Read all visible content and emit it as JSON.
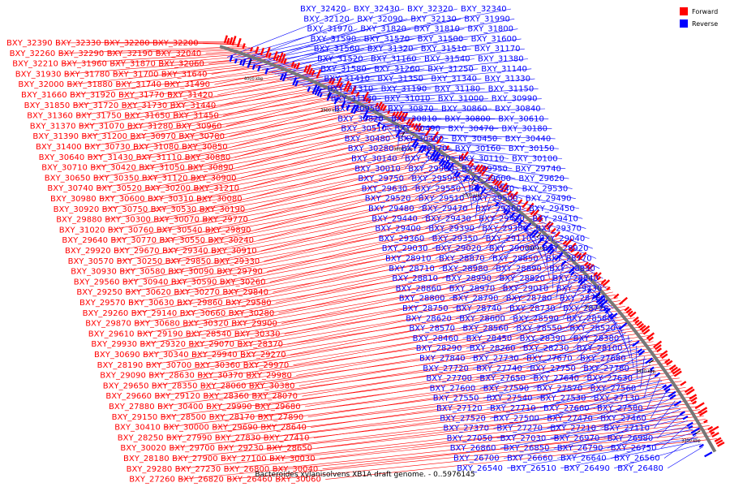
{
  "caption": "Bacteroides xylanisolvens XB1A draft genome. - 0..5976145",
  "legend": [
    {
      "label": "Forward",
      "color": "#ff0000"
    },
    {
      "label": "Reverse",
      "color": "#0000ff"
    }
  ],
  "colors": {
    "forward": "#ff0000",
    "reverse": "#0000ff",
    "backbone": "#777777"
  },
  "ticks": [
    "4000 kbp",
    "3900 kbp",
    "3800 kbp",
    "3700 kbp",
    "3600 kbp",
    "3500 kbp",
    "3400 kbp",
    "3300 kbp"
  ],
  "genes_red": [
    "BXY_32390",
    "BXY_32330",
    "BXY_32280",
    "BXY_32200",
    "BXY_32260",
    "BXY_32290",
    "BXY_32190",
    "BXY_32040",
    "BXY_32210",
    "BXY_31960",
    "BXY_31870",
    "BXY_32060",
    "BXY_31930",
    "BXY_31780",
    "BXY_31700",
    "BXY_31640",
    "BXY_32000",
    "BXY_31880",
    "BXY_31740",
    "BXY_31490",
    "BXY_31660",
    "BXY_31920",
    "BXY_31770",
    "BXY_31420",
    "BXY_31850",
    "BXY_31720",
    "BXY_31730",
    "BXY_31440",
    "BXY_31360",
    "BXY_31750",
    "BXY_31650",
    "BXY_31450",
    "BXY_31370",
    "BXY_31070",
    "BXY_31280",
    "BXY_30960",
    "BXY_31390",
    "BXY_31200",
    "BXY_30970",
    "BXY_30780",
    "BXY_31400",
    "BXY_30730",
    "BXY_31080",
    "BXY_30850",
    "BXY_30640",
    "BXY_31430",
    "BXY_31110",
    "BXY_30880",
    "BXY_30710",
    "BXY_30420",
    "BXY_31050",
    "BXY_30890",
    "BXY_30650",
    "BXY_30350",
    "BXY_31120",
    "BXY_30900",
    "BXY_30740",
    "BXY_30520",
    "BXY_30200",
    "BXY_31210",
    "BXY_30980",
    "BXY_30600",
    "BXY_30310",
    "BXY_30080",
    "BXY_30920",
    "BXY_30750",
    "BXY_30530",
    "BXY_30190",
    "BXY_29880",
    "BXY_30300",
    "BXY_30070",
    "BXY_29770",
    "BXY_31020",
    "BXY_30760",
    "BXY_30540",
    "BXY_29890",
    "BXY_29640",
    "BXY_30770",
    "BXY_30550",
    "BXY_30240",
    "BXY_29920",
    "BXY_29670",
    "BXY_29340",
    "BXY_30910",
    "BXY_30570",
    "BXY_30250",
    "BXY_29850",
    "BXY_29330",
    "BXY_30930",
    "BXY_30580",
    "BXY_30090",
    "BXY_29790",
    "BXY_29560",
    "BXY_30940",
    "BXY_30590",
    "BXY_30260",
    "BXY_29250",
    "BXY_30620",
    "BXY_30270",
    "BXY_29840",
    "BXY_29570",
    "BXY_30630",
    "BXY_29860",
    "BXY_29580",
    "BXY_29260",
    "BXY_29140",
    "BXY_30660",
    "BXY_30280",
    "BXY_29870",
    "BXY_30680",
    "BXY_30320",
    "BXY_29900",
    "BXY_29610",
    "BXY_29190",
    "BXY_28540",
    "BXY_30330",
    "BXY_29930",
    "BXY_29320",
    "BXY_29070",
    "BXY_28370",
    "BXY_30690",
    "BXY_30340",
    "BXY_29940",
    "BXY_29270",
    "BXY_28190",
    "BXY_30700",
    "BXY_30360",
    "BXY_29970",
    "BXY_29090",
    "BXY_28630",
    "BXY_30370",
    "BXY_29980",
    "BXY_29650",
    "BXY_28350",
    "BXY_28060",
    "BXY_30380",
    "BXY_29660",
    "BXY_29120",
    "BXY_28360",
    "BXY_28070",
    "BXY_27880",
    "BXY_30400",
    "BXY_29990",
    "BXY_29680",
    "BXY_29150",
    "BXY_28500",
    "BXY_28170",
    "BXY_27890",
    "BXY_30410",
    "BXY_30000",
    "BXY_29690",
    "BXY_28640",
    "BXY_28250",
    "BXY_27990",
    "BXY_27830",
    "BXY_27410",
    "BXY_30020",
    "BXY_29700",
    "BXY_29230",
    "BXY_28650",
    "BXY_28180",
    "BXY_27900",
    "BXY_27100",
    "BXY_30030",
    "BXY_29280",
    "BXY_27230",
    "BXY_26800",
    "BXY_30040",
    "BXY_27260",
    "BXY_26820",
    "BXY_26460",
    "BXY_30060"
  ],
  "genes_blue": [
    "BXY_32420",
    "BXY_32430",
    "BXY_32320",
    "BXY_32340",
    "BXY_32120",
    "BXY_32090",
    "BXY_32130",
    "BXY_31990",
    "BXY_31970",
    "BXY_31820",
    "BXY_31810",
    "BXY_31800",
    "BXY_31590",
    "BXY_31570",
    "BXY_31500",
    "BXY_31600",
    "BXY_31560",
    "BXY_31320",
    "BXY_31510",
    "BXY_31170",
    "BXY_31520",
    "BXY_31160",
    "BXY_31540",
    "BXY_31380",
    "BXY_31580",
    "BXY_31260",
    "BXY_31250",
    "BXY_31140",
    "BXY_31410",
    "BXY_31350",
    "BXY_31340",
    "BXY_31330",
    "BXY_31310",
    "BXY_31190",
    "BXY_31180",
    "BXY_31150",
    "BXY_31130",
    "BXY_31010",
    "BXY_31000",
    "BXY_30990",
    "BXY_30950",
    "BXY_30870",
    "BXY_30860",
    "BXY_30840",
    "BXY_30820",
    "BXY_30810",
    "BXY_30800",
    "BXY_30610",
    "BXY_30510",
    "BXY_30490",
    "BXY_30470",
    "BXY_30180",
    "BXY_30480",
    "BXY_30460",
    "BXY_30450",
    "BXY_30440",
    "BXY_30280",
    "BXY_30170",
    "BXY_30160",
    "BXY_30150",
    "BXY_30140",
    "BXY_30120",
    "BXY_30110",
    "BXY_30100",
    "BXY_30010",
    "BXY_29960",
    "BXY_29950",
    "BXY_29740",
    "BXY_29750",
    "BXY_29590",
    "BXY_29600",
    "BXY_29620",
    "BXY_29630",
    "BXY_29550",
    "BXY_29540",
    "BXY_29530",
    "BXY_29520",
    "BXY_29510",
    "BXY_29500",
    "BXY_29490",
    "BXY_29480",
    "BXY_29470",
    "BXY_29460",
    "BXY_29450",
    "BXY_29440",
    "BXY_29430",
    "BXY_29420",
    "BXY_29410",
    "BXY_29400",
    "BXY_29390",
    "BXY_29380",
    "BXY_29370",
    "BXY_29360",
    "BXY_29350",
    "BXY_29110",
    "BXY_29040",
    "BXY_29030",
    "BXY_29020",
    "BXY_29000",
    "BXY_28920",
    "BXY_28910",
    "BXY_28870",
    "BXY_28850",
    "BXY_28770",
    "BXY_28710",
    "BXY_28980",
    "BXY_28890",
    "BXY_28830",
    "BXY_28810",
    "BXY_28990",
    "BXY_28820",
    "BXY_28840",
    "BXY_28860",
    "BXY_28970",
    "BXY_29010",
    "BXY_29730",
    "BXY_28800",
    "BXY_28790",
    "BXY_28780",
    "BXY_28760",
    "BXY_28750",
    "BXY_28740",
    "BXY_28730",
    "BXY_28720",
    "BXY_28620",
    "BXY_28600",
    "BXY_28590",
    "BXY_28580",
    "BXY_28570",
    "BXY_28560",
    "BXY_28550",
    "BXY_28520",
    "BXY_28460",
    "BXY_28450",
    "BXY_28390",
    "BXY_28380",
    "BXY_28290",
    "BXY_28260",
    "BXY_28230",
    "BXY_28100",
    "BXY_27840",
    "BXY_27730",
    "BXY_27670",
    "BXY_27680",
    "BXY_27720",
    "BXY_27740",
    "BXY_27750",
    "BXY_27780",
    "BXY_27700",
    "BXY_27650",
    "BXY_27640",
    "BXY_27630",
    "BXY_27600",
    "BXY_27590",
    "BXY_27570",
    "BXY_27560",
    "BXY_27550",
    "BXY_27540",
    "BXY_27530",
    "BXY_27130",
    "BXY_27120",
    "BXY_27710",
    "BXY_27660",
    "BXY_27580",
    "BXY_27520",
    "BXY_27500",
    "BXY_27470",
    "BXY_27460",
    "BXY_27370",
    "BXY_27270",
    "BXY_27210",
    "BXY_27110",
    "BXY_27050",
    "BXY_27030",
    "BXY_26970",
    "BXY_26980",
    "BXY_26860",
    "BXY_26850",
    "BXY_26790",
    "BXY_26750",
    "BXY_26700",
    "BXY_26660",
    "BXY_26640",
    "BXY_26560",
    "BXY_26540",
    "BXY_26510",
    "BXY_26490",
    "BXY_26480"
  ]
}
